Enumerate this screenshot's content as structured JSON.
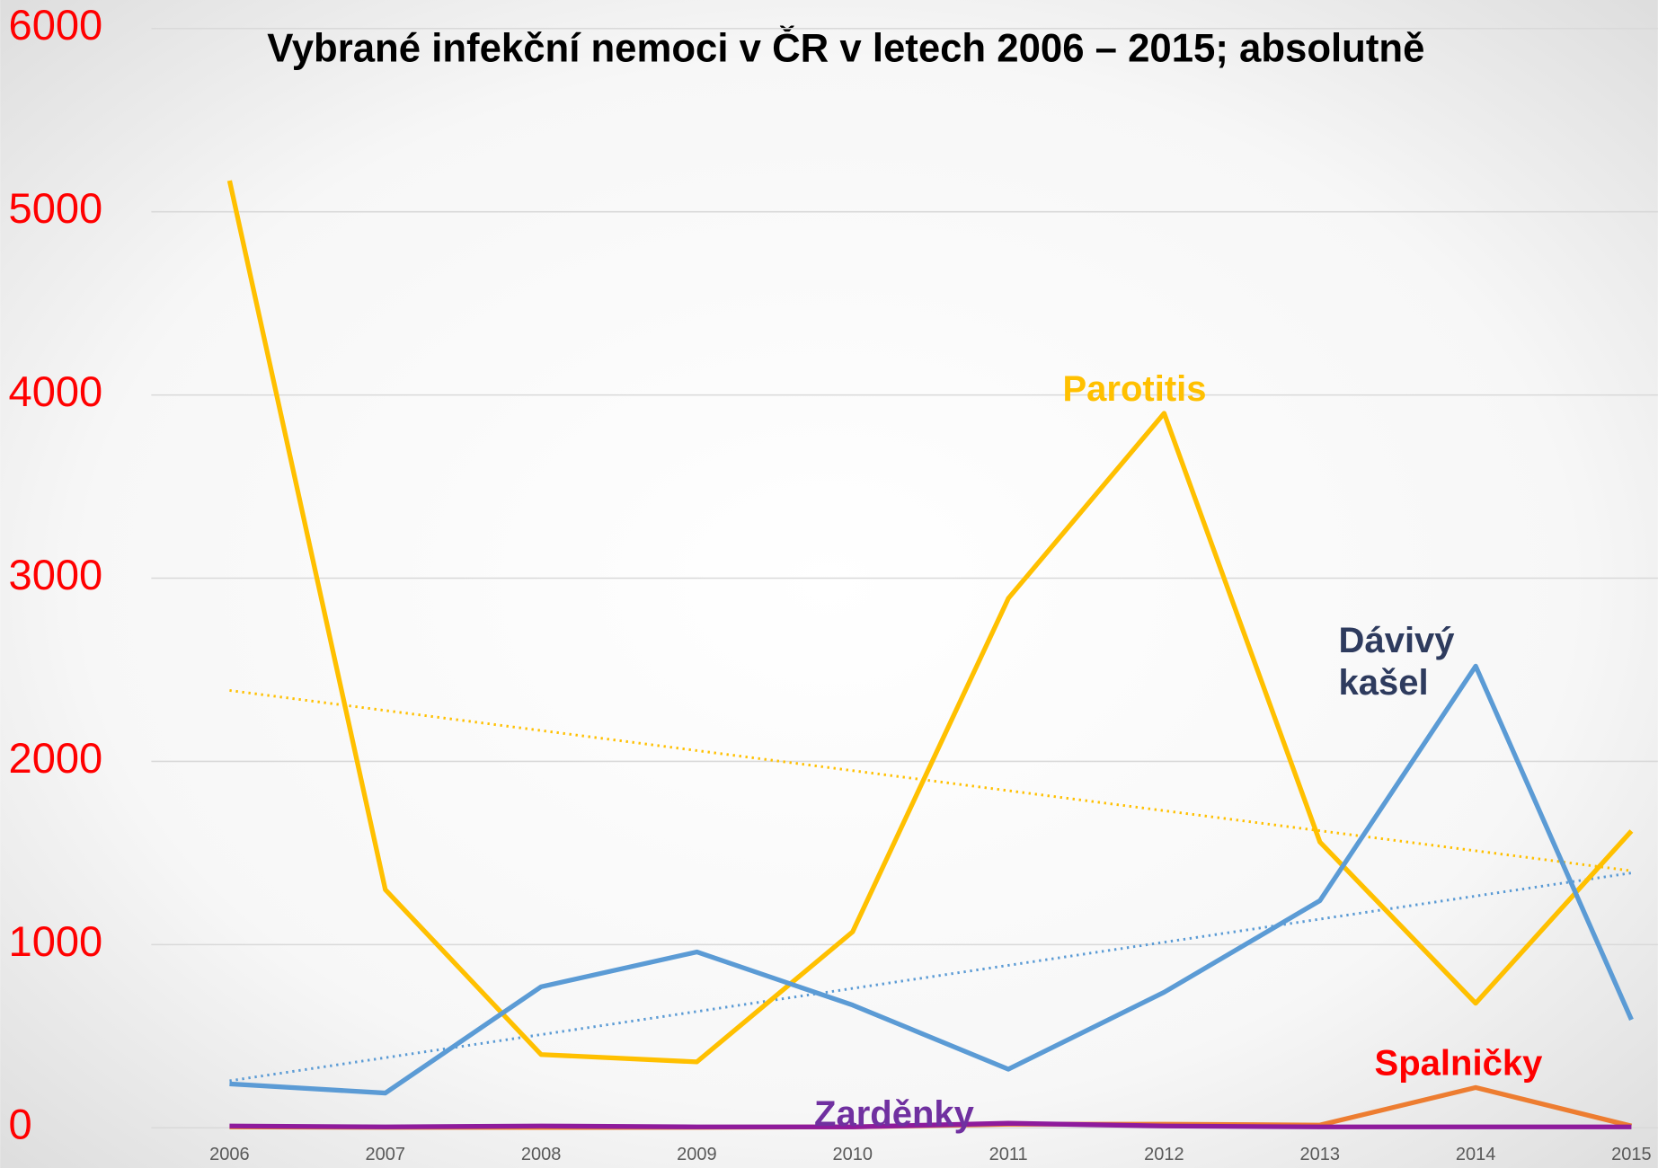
{
  "chart_data": {
    "type": "line",
    "title": "Vybrané infekční nemoci v ČR v letech 2006 – 2015; absolutně",
    "categories": [
      "2006",
      "2007",
      "2008",
      "2009",
      "2010",
      "2011",
      "2012",
      "2013",
      "2014",
      "2015"
    ],
    "series": [
      {
        "name": "Parotitis",
        "color": "#ffc000",
        "label_color": "#ffc000",
        "trendline": true,
        "values": [
          5170,
          1300,
          400,
          360,
          1070,
          2890,
          3900,
          1560,
          680,
          1620
        ]
      },
      {
        "name": "Dávivý kašel",
        "color": "#5b9bd5",
        "label_color": "#2e3b5e",
        "trendline": true,
        "values": [
          240,
          190,
          770,
          960,
          670,
          320,
          740,
          1240,
          2520,
          590
        ]
      },
      {
        "name": "Spalničky",
        "color": "#ed7d31",
        "label_color": "#ff0000",
        "trendline": false,
        "values": [
          5,
          3,
          2,
          3,
          5,
          20,
          20,
          15,
          220,
          10
        ]
      },
      {
        "name": "Zarděnky",
        "color": "#8e1b9c",
        "label_color": "#7030a0",
        "trendline": false,
        "values": [
          10,
          5,
          10,
          5,
          5,
          25,
          10,
          5,
          5,
          5
        ]
      }
    ],
    "ylim": [
      0,
      6000
    ],
    "yticks": [
      0,
      1000,
      2000,
      3000,
      4000,
      5000,
      6000
    ],
    "grid": true
  }
}
